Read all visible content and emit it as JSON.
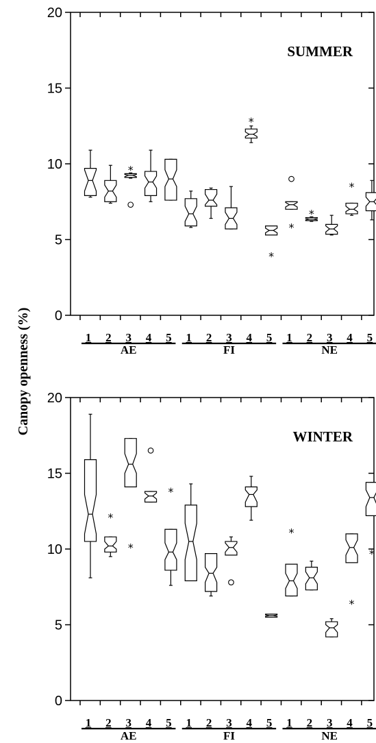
{
  "y_axis_label": "Canopy openness (%)",
  "chart_data": [
    {
      "type": "boxplot",
      "title": "SUMMER",
      "ylim": [
        0,
        20
      ],
      "yticks": [
        "0",
        "5",
        "10",
        "15",
        "20"
      ],
      "categories": [
        "1",
        "2",
        "3",
        "4",
        "5",
        "1",
        "2",
        "3",
        "4",
        "5",
        "1",
        "2",
        "3",
        "4",
        "5"
      ],
      "groups": [
        {
          "name": "AE",
          "range": [
            0,
            4
          ]
        },
        {
          "name": "FI",
          "range": [
            5,
            9
          ]
        },
        {
          "name": "NE",
          "range": [
            10,
            14
          ]
        }
      ],
      "boxes": [
        {
          "min": 7.8,
          "q1": 7.9,
          "median": 8.9,
          "q3": 9.7,
          "max": 10.9,
          "notch_lo": 8.2,
          "notch_hi": 9.6,
          "outliers": []
        },
        {
          "min": 7.4,
          "q1": 7.5,
          "median": 8.2,
          "q3": 8.9,
          "max": 9.9,
          "notch_lo": 7.8,
          "notch_hi": 8.6,
          "outliers": []
        },
        {
          "min": 9.05,
          "q1": 9.1,
          "median": 9.25,
          "q3": 9.35,
          "max": 9.4,
          "notch_lo": 9.15,
          "notch_hi": 9.3,
          "outliers": [
            {
              "value": 9.7,
              "symbol": "*"
            },
            {
              "value": 7.3,
              "symbol": "o"
            }
          ]
        },
        {
          "min": 7.5,
          "q1": 7.9,
          "median": 8.8,
          "q3": 9.5,
          "max": 10.9,
          "notch_lo": 8.4,
          "notch_hi": 9.2,
          "outliers": []
        },
        {
          "min": 7.6,
          "q1": 7.6,
          "median": 9.0,
          "q3": 10.3,
          "max": 10.3,
          "notch_lo": 8.5,
          "notch_hi": 9.6,
          "outliers": []
        },
        {
          "min": 5.8,
          "q1": 5.9,
          "median": 6.7,
          "q3": 7.7,
          "max": 8.2,
          "notch_lo": 6.2,
          "notch_hi": 7.2,
          "outliers": []
        },
        {
          "min": 6.4,
          "q1": 7.2,
          "median": 7.6,
          "q3": 8.3,
          "max": 8.4,
          "notch_lo": 7.3,
          "notch_hi": 8.0,
          "outliers": []
        },
        {
          "min": 5.7,
          "q1": 5.7,
          "median": 6.4,
          "q3": 7.1,
          "max": 8.5,
          "notch_lo": 6.0,
          "notch_hi": 6.8,
          "outliers": []
        },
        {
          "min": 11.4,
          "q1": 11.7,
          "median": 11.95,
          "q3": 12.3,
          "max": 12.5,
          "notch_lo": 11.8,
          "notch_hi": 12.1,
          "outliers": [
            {
              "value": 12.9,
              "symbol": "*"
            }
          ]
        },
        {
          "min": 5.3,
          "q1": 5.3,
          "median": 5.6,
          "q3": 5.9,
          "max": 5.9,
          "notch_lo": 5.45,
          "notch_hi": 5.75,
          "outliers": [
            {
              "value": 4.0,
              "symbol": "*"
            }
          ]
        },
        {
          "min": 7.0,
          "q1": 7.0,
          "median": 7.3,
          "q3": 7.5,
          "max": 7.5,
          "notch_lo": 7.15,
          "notch_hi": 7.45,
          "outliers": [
            {
              "value": 9.0,
              "symbol": "o"
            },
            {
              "value": 5.9,
              "symbol": "*"
            }
          ]
        },
        {
          "min": 6.2,
          "q1": 6.25,
          "median": 6.35,
          "q3": 6.45,
          "max": 6.5,
          "notch_lo": 6.3,
          "notch_hi": 6.4,
          "outliers": [
            {
              "value": 6.8,
              "symbol": "*"
            }
          ]
        },
        {
          "min": 5.3,
          "q1": 5.35,
          "median": 5.7,
          "q3": 6.0,
          "max": 6.6,
          "notch_lo": 5.5,
          "notch_hi": 5.9,
          "outliers": []
        },
        {
          "min": 6.6,
          "q1": 6.7,
          "median": 7.0,
          "q3": 7.4,
          "max": 7.4,
          "notch_lo": 6.85,
          "notch_hi": 7.2,
          "outliers": [
            {
              "value": 8.6,
              "symbol": "*"
            }
          ]
        },
        {
          "min": 6.3,
          "q1": 6.9,
          "median": 7.5,
          "q3": 8.1,
          "max": 8.9,
          "notch_lo": 7.2,
          "notch_hi": 7.8,
          "outliers": []
        }
      ]
    },
    {
      "type": "boxplot",
      "title": "WINTER",
      "ylim": [
        0,
        20
      ],
      "yticks": [
        "0",
        "5",
        "10",
        "15",
        "20"
      ],
      "categories": [
        "1",
        "2",
        "3",
        "4",
        "5",
        "1",
        "2",
        "3",
        "4",
        "5",
        "1",
        "2",
        "3",
        "4",
        "5"
      ],
      "groups": [
        {
          "name": "AE",
          "range": [
            0,
            4
          ]
        },
        {
          "name": "FI",
          "range": [
            5,
            9
          ]
        },
        {
          "name": "NE",
          "range": [
            10,
            14
          ]
        }
      ],
      "boxes": [
        {
          "min": 8.1,
          "q1": 10.5,
          "median": 12.3,
          "q3": 15.9,
          "max": 18.9,
          "notch_lo": 11.0,
          "notch_hi": 13.6,
          "outliers": []
        },
        {
          "min": 9.5,
          "q1": 9.8,
          "median": 10.2,
          "q3": 10.8,
          "max": 10.8,
          "notch_lo": 10.0,
          "notch_hi": 10.5,
          "outliers": [
            {
              "value": 12.2,
              "symbol": "*"
            }
          ]
        },
        {
          "min": 14.1,
          "q1": 14.1,
          "median": 15.6,
          "q3": 17.3,
          "max": 17.3,
          "notch_lo": 15.0,
          "notch_hi": 16.3,
          "outliers": [
            {
              "value": 10.2,
              "symbol": "*"
            }
          ]
        },
        {
          "min": 13.1,
          "q1": 13.1,
          "median": 13.5,
          "q3": 13.8,
          "max": 13.8,
          "notch_lo": 13.3,
          "notch_hi": 13.7,
          "outliers": [
            {
              "value": 16.5,
              "symbol": "o"
            }
          ]
        },
        {
          "min": 7.6,
          "q1": 8.6,
          "median": 9.8,
          "q3": 11.3,
          "max": 11.3,
          "notch_lo": 9.3,
          "notch_hi": 10.4,
          "outliers": [
            {
              "value": 13.9,
              "symbol": "*"
            }
          ]
        },
        {
          "min": 7.9,
          "q1": 7.9,
          "median": 10.5,
          "q3": 12.9,
          "max": 14.3,
          "notch_lo": 9.3,
          "notch_hi": 11.7,
          "outliers": []
        },
        {
          "min": 6.9,
          "q1": 7.2,
          "median": 8.4,
          "q3": 9.7,
          "max": 9.7,
          "notch_lo": 7.8,
          "notch_hi": 8.8,
          "outliers": []
        },
        {
          "min": 9.6,
          "q1": 9.6,
          "median": 10.1,
          "q3": 10.5,
          "max": 10.8,
          "notch_lo": 9.8,
          "notch_hi": 10.4,
          "outliers": [
            {
              "value": 7.8,
              "symbol": "o"
            }
          ]
        },
        {
          "min": 11.9,
          "q1": 12.8,
          "median": 13.6,
          "q3": 14.1,
          "max": 14.8,
          "notch_lo": 13.1,
          "notch_hi": 13.9,
          "outliers": []
        },
        {
          "min": 5.5,
          "q1": 5.5,
          "median": 5.6,
          "q3": 5.7,
          "max": 5.7,
          "notch_lo": 5.55,
          "notch_hi": 5.65,
          "outliers": []
        },
        {
          "min": 6.9,
          "q1": 6.9,
          "median": 7.9,
          "q3": 9.0,
          "max": 9.0,
          "notch_lo": 7.4,
          "notch_hi": 8.4,
          "outliers": [
            {
              "value": 11.2,
              "symbol": "*"
            }
          ]
        },
        {
          "min": 7.3,
          "q1": 7.3,
          "median": 8.1,
          "q3": 8.8,
          "max": 9.2,
          "notch_lo": 7.7,
          "notch_hi": 8.5,
          "outliers": []
        },
        {
          "min": 4.2,
          "q1": 4.2,
          "median": 4.8,
          "q3": 5.2,
          "max": 5.4,
          "notch_lo": 4.5,
          "notch_hi": 5.0,
          "outliers": []
        },
        {
          "min": 9.1,
          "q1": 9.1,
          "median": 10.1,
          "q3": 11.0,
          "max": 11.0,
          "notch_lo": 9.6,
          "notch_hi": 10.6,
          "outliers": [
            {
              "value": 6.5,
              "symbol": "*"
            }
          ]
        },
        {
          "min": 12.2,
          "q1": 12.2,
          "median": 13.4,
          "q3": 14.4,
          "max": 14.4,
          "notch_lo": 12.8,
          "notch_hi": 13.9,
          "outliers": [
            {
              "value": 9.8,
              "symbol": "*"
            }
          ]
        }
      ]
    }
  ]
}
